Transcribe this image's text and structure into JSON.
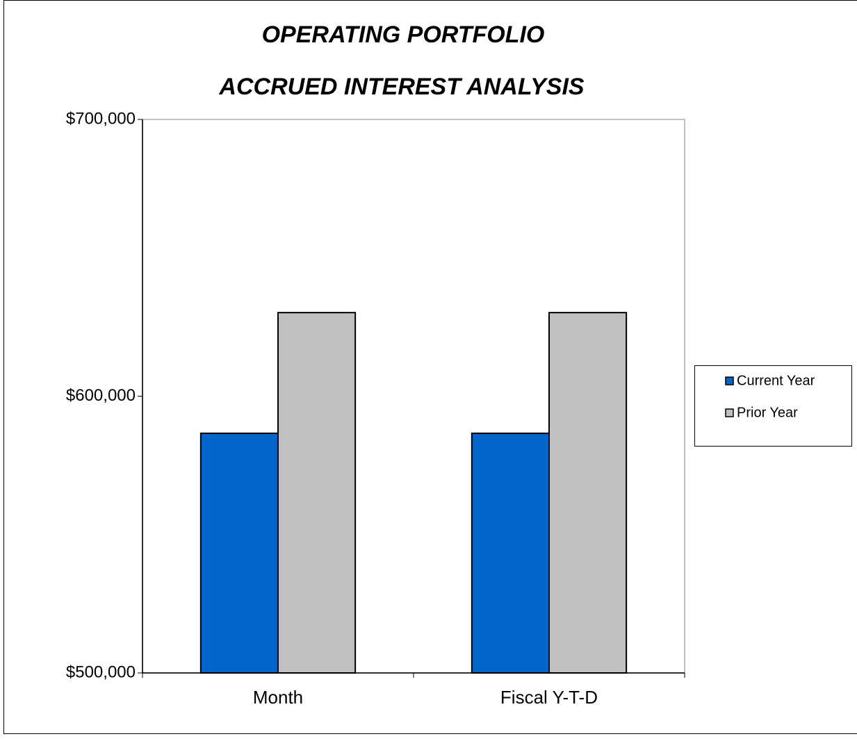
{
  "chart_data": {
    "type": "bar",
    "title": "OPERATING PORTFOLIO",
    "subtitle": "ACCRUED INTEREST ANALYSIS",
    "categories": [
      "Month",
      "Fiscal Y-T-D"
    ],
    "series": [
      {
        "name": "Current Year",
        "color": "#0066cc",
        "values": [
          586600,
          586600
        ]
      },
      {
        "name": "Prior Year",
        "color": "#c0c0c0",
        "values": [
          630200,
          630200
        ]
      }
    ],
    "ylim": [
      500000,
      700000
    ],
    "yticks": [
      {
        "value": 500000,
        "label": "$500,000"
      },
      {
        "value": 600000,
        "label": "$600,000"
      },
      {
        "value": 700000,
        "label": "$700,000"
      }
    ],
    "grid": false,
    "legend": "right"
  }
}
